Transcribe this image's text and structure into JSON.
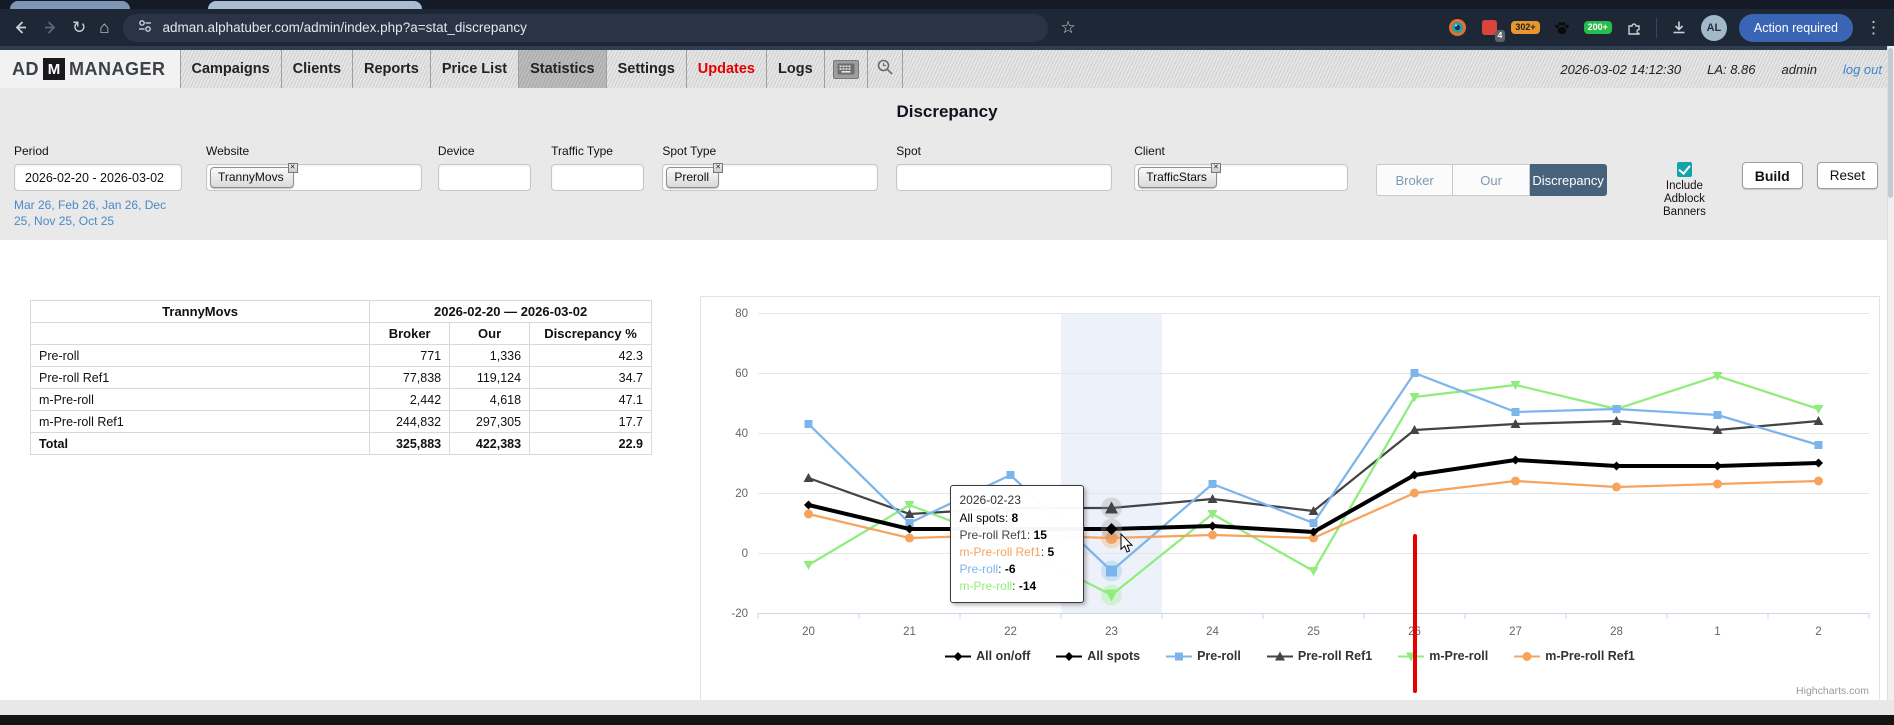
{
  "browser": {
    "url": "adman.alphatuber.com/admin/index.php?a=stat_discrepancy",
    "avatar": "AL",
    "action_button": "Action required",
    "badges": {
      "red": "4",
      "orange": "302+",
      "green": "200+"
    }
  },
  "header": {
    "logo_prefix": "AD",
    "logo_m": "M",
    "logo_suffix": "MANAGER",
    "menu": [
      {
        "label": "Campaigns"
      },
      {
        "label": "Clients"
      },
      {
        "label": "Reports"
      },
      {
        "label": "Price List"
      },
      {
        "label": "Statistics",
        "active": true
      },
      {
        "label": "Settings"
      },
      {
        "label": "Updates",
        "highlight": true
      },
      {
        "label": "Logs"
      }
    ],
    "datetime": "2026-03-02 14:12:30",
    "load_average": "LA: 8.86",
    "user": "admin",
    "logout": "log out"
  },
  "page": {
    "title": "Discrepancy"
  },
  "filters": {
    "period": {
      "label": "Period",
      "value": "2026-02-20 - 2026-03-02",
      "quick_links": [
        "Mar 26",
        "Feb 26",
        "Jan 26",
        "Dec 25",
        "Nov 25",
        "Oct 25"
      ]
    },
    "website": {
      "label": "Website",
      "chip": "TrannyMovs"
    },
    "device": {
      "label": "Device",
      "value": ""
    },
    "traffic_type": {
      "label": "Traffic Type",
      "value": ""
    },
    "spot_type": {
      "label": "Spot Type",
      "chip": "Preroll"
    },
    "spot": {
      "label": "Spot",
      "value": ""
    },
    "client": {
      "label": "Client",
      "chip": "TrafficStars"
    },
    "mode_buttons": [
      {
        "label": "Broker"
      },
      {
        "label": "Our"
      },
      {
        "label": "Discrepancy",
        "active": true
      }
    ],
    "adblock": {
      "label": "Include Adblock Banners",
      "checked": true
    },
    "build_label": "Build",
    "reset_label": "Reset"
  },
  "table": {
    "title": "TrannyMovs",
    "period": "2026-02-20 — 2026-03-02",
    "columns": [
      "Broker",
      "Our",
      "Discrepancy %"
    ],
    "rows": [
      {
        "name": "Pre-roll",
        "broker": "771",
        "our": "1,336",
        "disc": "42.3"
      },
      {
        "name": "Pre-roll Ref1",
        "broker": "77,838",
        "our": "119,124",
        "disc": "34.7"
      },
      {
        "name": "m-Pre-roll",
        "broker": "2,442",
        "our": "4,618",
        "disc": "47.1"
      },
      {
        "name": "m-Pre-roll Ref1",
        "broker": "244,832",
        "our": "297,305",
        "disc": "17.7"
      }
    ],
    "total": {
      "name": "Total",
      "broker": "325,883",
      "our": "422,383",
      "disc": "22.9"
    }
  },
  "chart_data": {
    "type": "line",
    "title": "",
    "xlabel": "",
    "ylabel": "",
    "categories": [
      "20",
      "21",
      "22",
      "23",
      "24",
      "25",
      "26",
      "27",
      "28",
      "1",
      "2"
    ],
    "ylim": [
      -20,
      80
    ],
    "yticks": [
      80,
      60,
      40,
      20,
      0,
      -20
    ],
    "grid": true,
    "legend_position": "bottom",
    "credit": "Highcharts.com",
    "series": [
      {
        "name": "All spots",
        "color": "#000000",
        "marker": "diamond",
        "thick": true,
        "values": [
          16,
          8,
          8,
          8,
          9,
          7,
          26,
          31,
          29,
          29,
          30
        ]
      },
      {
        "name": "Pre-roll",
        "color": "#7cb5ec",
        "marker": "square",
        "values": [
          43,
          10,
          26,
          -6,
          23,
          10,
          60,
          47,
          48,
          46,
          36
        ]
      },
      {
        "name": "Pre-roll Ref1",
        "color": "#434348",
        "marker": "triangle",
        "values": [
          25,
          13,
          15,
          15,
          18,
          14,
          41,
          43,
          44,
          41,
          44
        ]
      },
      {
        "name": "m-Pre-roll",
        "color": "#90ed7d",
        "marker": "triangle-down",
        "values": [
          -4,
          16,
          3,
          -14,
          13,
          -6,
          52,
          56,
          48,
          59,
          48
        ]
      },
      {
        "name": "m-Pre-roll Ref1",
        "color": "#f7a35c",
        "marker": "circle",
        "values": [
          13,
          5,
          6,
          5,
          6,
          5,
          20,
          24,
          22,
          23,
          24
        ]
      }
    ],
    "legend": [
      {
        "name": "All on/off",
        "color": "#000000",
        "marker": "diamond"
      },
      {
        "name": "All spots",
        "color": "#000000",
        "marker": "diamond"
      },
      {
        "name": "Pre-roll",
        "color": "#7cb5ec",
        "marker": "square"
      },
      {
        "name": "Pre-roll Ref1",
        "color": "#434348",
        "marker": "triangle"
      },
      {
        "name": "m-Pre-roll",
        "color": "#90ed7d",
        "marker": "triangle-down"
      },
      {
        "name": "m-Pre-roll Ref1",
        "color": "#f7a35c",
        "marker": "circle"
      }
    ],
    "hover_index": 3,
    "tooltip": {
      "title": "2026-02-23",
      "entries": [
        {
          "name": "All spots",
          "value": "8",
          "color": "#000000"
        },
        {
          "name": "Pre-roll Ref1",
          "value": "15",
          "color": "#434348"
        },
        {
          "name": "m-Pre-roll Ref1",
          "value": "5",
          "color": "#f7a35c"
        },
        {
          "name": "Pre-roll",
          "value": "-6",
          "color": "#7cb5ec"
        },
        {
          "name": "m-Pre-roll",
          "value": "-14",
          "color": "#90ed7d"
        }
      ]
    },
    "annotation": {
      "type": "vline",
      "category": "26",
      "color": "#e60000"
    }
  }
}
